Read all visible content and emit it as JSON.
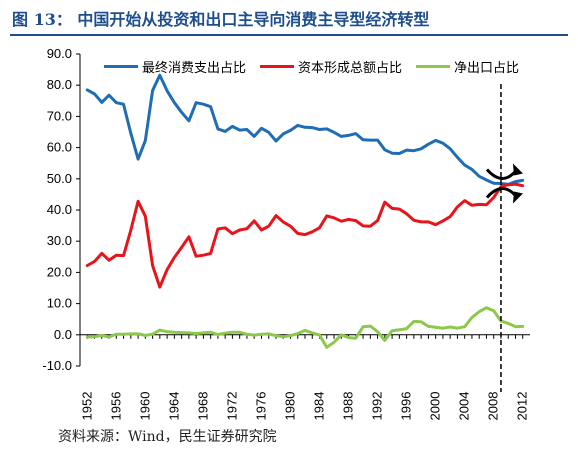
{
  "figure_title": "图 13：   中国开始从投资和出口主导向消费主导型经济转型",
  "source_note": "资料来源：Wind，民生证券研究院",
  "chart_data": {
    "type": "line",
    "title": "",
    "xlabel": "",
    "ylabel": "",
    "ylim": [
      -10,
      90
    ],
    "yticks": [
      "-10.0",
      "0.0",
      "10.0",
      "20.0",
      "30.0",
      "40.0",
      "50.0",
      "60.0",
      "70.0",
      "80.0",
      "90.0"
    ],
    "xticks": [
      "1952",
      "1956",
      "1960",
      "1964",
      "1968",
      "1972",
      "1976",
      "1980",
      "1984",
      "1988",
      "1992",
      "1996",
      "2000",
      "2004",
      "2008",
      "2012"
    ],
    "legend_position": "top",
    "vline_year": 2009,
    "x": [
      1952,
      1953,
      1954,
      1955,
      1956,
      1957,
      1958,
      1959,
      1960,
      1961,
      1962,
      1963,
      1964,
      1965,
      1966,
      1967,
      1968,
      1969,
      1970,
      1971,
      1972,
      1973,
      1974,
      1975,
      1976,
      1977,
      1978,
      1979,
      1980,
      1981,
      1982,
      1983,
      1984,
      1985,
      1986,
      1987,
      1988,
      1989,
      1990,
      1991,
      1992,
      1993,
      1994,
      1995,
      1996,
      1997,
      1998,
      1999,
      2000,
      2001,
      2002,
      2003,
      2004,
      2005,
      2006,
      2007,
      2008,
      2009,
      2010,
      2011,
      2012
    ],
    "series": [
      {
        "name": "最终消费支出占比",
        "color": "#1f6db5",
        "values": [
          78.5,
          77.2,
          74.5,
          76.8,
          74.4,
          73.9,
          64.6,
          56.3,
          62.2,
          78.3,
          83.2,
          78.2,
          74.4,
          71.3,
          68.6,
          74.4,
          73.9,
          73.1,
          66.0,
          65.2,
          66.8,
          65.6,
          65.8,
          63.6,
          66.2,
          64.9,
          62.1,
          64.4,
          65.5,
          67.1,
          66.5,
          66.4,
          65.8,
          66.0,
          64.9,
          63.6,
          63.9,
          64.5,
          62.5,
          62.4,
          62.4,
          59.3,
          58.2,
          58.1,
          59.2,
          59.0,
          59.6,
          61.1,
          62.3,
          61.4,
          59.6,
          56.9,
          54.4,
          53.0,
          50.8,
          49.6,
          48.6,
          48.5,
          48.2,
          49.1,
          49.5
        ]
      },
      {
        "name": "资本形成总额占比",
        "color": "#e8141b",
        "values": [
          22.2,
          23.5,
          26.1,
          23.9,
          25.5,
          25.4,
          33.5,
          42.8,
          38.0,
          22.2,
          15.3,
          20.9,
          24.8,
          28.0,
          31.4,
          25.2,
          25.5,
          26.1,
          33.9,
          34.3,
          32.4,
          33.6,
          34.0,
          36.5,
          33.6,
          34.8,
          38.2,
          36.2,
          34.8,
          32.5,
          32.1,
          33.0,
          34.3,
          38.1,
          37.5,
          36.4,
          37.0,
          36.6,
          34.9,
          34.8,
          36.6,
          42.5,
          40.5,
          40.3,
          38.8,
          36.7,
          36.2,
          36.2,
          35.3,
          36.5,
          37.9,
          41.0,
          43.0,
          41.5,
          41.8,
          41.7,
          44.0,
          47.5,
          48.1,
          48.3,
          47.8
        ]
      },
      {
        "name": "净出口占比",
        "color": "#8cc84b",
        "values": [
          -0.7,
          -0.6,
          -0.2,
          -0.7,
          0.2,
          0.2,
          0.3,
          0.3,
          -0.2,
          0.2,
          1.5,
          1.0,
          0.8,
          0.7,
          0.6,
          0.4,
          0.6,
          0.8,
          0.1,
          0.5,
          0.8,
          0.8,
          0.2,
          -0.1,
          0.2,
          0.3,
          -0.3,
          -0.6,
          -0.3,
          0.4,
          1.4,
          0.6,
          -0.1,
          -4.0,
          -2.4,
          0.0,
          -0.9,
          -1.1,
          2.6,
          2.8,
          1.0,
          -1.8,
          1.3,
          1.6,
          2.0,
          4.3,
          4.2,
          2.7,
          2.4,
          2.1,
          2.5,
          2.1,
          2.6,
          5.5,
          7.4,
          8.7,
          7.7,
          4.4,
          3.7,
          2.6,
          2.7
        ]
      }
    ]
  }
}
